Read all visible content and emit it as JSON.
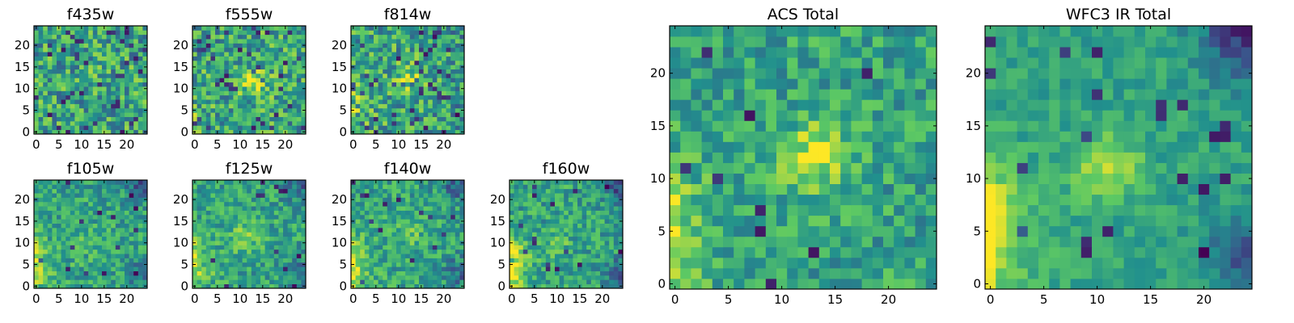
{
  "figure": {
    "title": "",
    "colormap": "viridis",
    "colormap_stops": [
      "#440154",
      "#3b528b",
      "#21908d",
      "#5dc963",
      "#fde725"
    ]
  },
  "chart_data": [
    {
      "type": "heatmap",
      "title": "f435w",
      "grid_size": 25,
      "xlim": [
        0,
        24
      ],
      "ylim": [
        0,
        24
      ],
      "xticks": [
        "0",
        "5",
        "10",
        "15",
        "20"
      ],
      "yticks": [
        "0",
        "5",
        "10",
        "15",
        "20"
      ],
      "structure": {
        "noise": "high",
        "center_bright": 0.05,
        "center": [
          12,
          12
        ],
        "left_edge": 0.0,
        "corner_dark": 0.0
      }
    },
    {
      "type": "heatmap",
      "title": "f555w",
      "grid_size": 25,
      "xlim": [
        0,
        24
      ],
      "ylim": [
        0,
        24
      ],
      "xticks": [
        "0",
        "5",
        "10",
        "15",
        "20"
      ],
      "yticks": [
        "0",
        "5",
        "10",
        "15",
        "20"
      ],
      "structure": {
        "noise": "high",
        "center_bright": 0.3,
        "center": [
          13,
          11
        ],
        "left_edge": 0.1,
        "corner_dark": 0.0
      }
    },
    {
      "type": "heatmap",
      "title": "f814w",
      "grid_size": 25,
      "xlim": [
        0,
        24
      ],
      "ylim": [
        0,
        24
      ],
      "xticks": [
        "0",
        "5",
        "10",
        "15",
        "20"
      ],
      "yticks": [
        "0",
        "5",
        "10",
        "15",
        "20"
      ],
      "structure": {
        "noise": "high",
        "center_bright": 0.25,
        "center": [
          12,
          12
        ],
        "left_edge": 0.3,
        "corner_dark": 0.1
      }
    },
    {
      "type": "heatmap",
      "title": "f105w",
      "grid_size": 25,
      "xlim": [
        0,
        24
      ],
      "ylim": [
        0,
        24
      ],
      "xticks": [
        "0",
        "5",
        "10",
        "15",
        "20"
      ],
      "yticks": [
        "0",
        "5",
        "10",
        "15",
        "20"
      ],
      "structure": {
        "noise": "medium",
        "center_bright": 0.1,
        "center": [
          10,
          10
        ],
        "left_edge": 0.35,
        "corner_dark": 0.3
      }
    },
    {
      "type": "heatmap",
      "title": "f125w",
      "grid_size": 25,
      "xlim": [
        0,
        24
      ],
      "ylim": [
        0,
        24
      ],
      "xticks": [
        "0",
        "5",
        "10",
        "15",
        "20"
      ],
      "yticks": [
        "0",
        "5",
        "10",
        "15",
        "20"
      ],
      "structure": {
        "noise": "medium",
        "center_bright": 0.2,
        "center": [
          11,
          11
        ],
        "left_edge": 0.35,
        "corner_dark": 0.3
      }
    },
    {
      "type": "heatmap",
      "title": "f140w",
      "grid_size": 25,
      "xlim": [
        0,
        24
      ],
      "ylim": [
        0,
        24
      ],
      "xticks": [
        "0",
        "5",
        "10",
        "15",
        "20"
      ],
      "yticks": [
        "0",
        "5",
        "10",
        "15",
        "20"
      ],
      "structure": {
        "noise": "medium",
        "center_bright": 0.15,
        "center": [
          12,
          12
        ],
        "left_edge": 0.4,
        "corner_dark": 0.3
      }
    },
    {
      "type": "heatmap",
      "title": "f160w",
      "grid_size": 25,
      "xlim": [
        0,
        24
      ],
      "ylim": [
        0,
        24
      ],
      "xticks": [
        "0",
        "5",
        "10",
        "15",
        "20"
      ],
      "yticks": [
        "0",
        "5",
        "10",
        "15",
        "20"
      ],
      "structure": {
        "noise": "medium",
        "center_bright": 0.1,
        "center": [
          10,
          10
        ],
        "left_edge": 0.5,
        "corner_dark": 0.35
      }
    },
    {
      "type": "heatmap",
      "title": "ACS Total",
      "grid_size": 25,
      "xlim": [
        0,
        24
      ],
      "ylim": [
        0,
        24
      ],
      "xticks": [
        "0",
        "5",
        "10",
        "15",
        "20"
      ],
      "yticks": [
        "0",
        "5",
        "10",
        "15",
        "20"
      ],
      "structure": {
        "noise": "medium",
        "center_bright": 0.35,
        "center": [
          13,
          12
        ],
        "left_edge": 0.3,
        "corner_dark": 0.0
      }
    },
    {
      "type": "heatmap",
      "title": "WFC3 IR Total",
      "grid_size": 25,
      "xlim": [
        0,
        24
      ],
      "ylim": [
        0,
        24
      ],
      "xticks": [
        "0",
        "5",
        "10",
        "15",
        "20"
      ],
      "yticks": [
        "0",
        "5",
        "10",
        "15",
        "20"
      ],
      "structure": {
        "noise": "low",
        "center_bright": 0.3,
        "center": [
          11,
          11
        ],
        "left_edge": 0.55,
        "corner_dark": 0.45
      }
    }
  ]
}
